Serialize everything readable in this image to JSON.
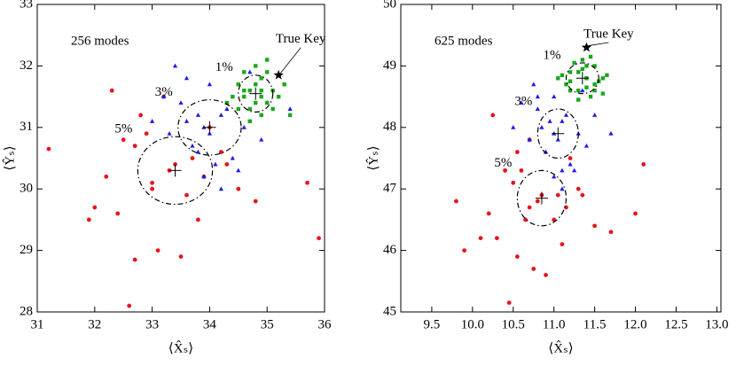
{
  "chart_data": [
    {
      "type": "scatter",
      "annotation": "256 modes",
      "xlabel": "⟨X̂ₛ⟩",
      "ylabel": "⟨Ŷₛ⟩",
      "xlim": [
        31,
        36
      ],
      "ylim": [
        28,
        33
      ],
      "xticks": [
        31,
        32,
        33,
        34,
        35,
        36
      ],
      "yticks": [
        28,
        29,
        30,
        31,
        32,
        33
      ],
      "true_key": {
        "label": "True Key",
        "x": 35.2,
        "y": 31.85
      },
      "series": [
        {
          "name": "5%",
          "color": "#e8141a",
          "marker": "circle",
          "x": [
            32.5,
            33.0,
            33.8,
            34.2,
            32.8,
            33.4,
            31.2,
            33.6,
            32.2,
            34.5,
            33.1,
            32.9,
            33.7,
            32.4,
            35.7,
            34.0,
            32.0,
            33.3,
            33.5,
            32.7,
            34.8,
            33.9,
            32.6,
            33.2,
            35.9,
            31.9,
            34.3,
            32.3,
            33.0,
            32.7
          ],
          "y": [
            30.8,
            30.1,
            29.5,
            30.6,
            31.2,
            30.4,
            30.65,
            29.9,
            30.2,
            30.0,
            29.0,
            30.9,
            30.5,
            29.6,
            30.1,
            31.0,
            29.7,
            30.3,
            28.9,
            30.7,
            29.8,
            30.2,
            28.1,
            31.5,
            29.2,
            29.5,
            30.4,
            31.6,
            30.0,
            28.85
          ],
          "ellipse": {
            "cx": 33.4,
            "cy": 30.3,
            "rx": 0.65,
            "ry": 0.55
          }
        },
        {
          "name": "3%",
          "color": "#1a1aee",
          "marker": "triangle",
          "x": [
            33.5,
            34.2,
            33.8,
            34.6,
            33.3,
            34.0,
            34.4,
            33.6,
            34.9,
            33.9,
            33.2,
            34.3,
            34.7,
            33.7,
            34.1,
            33.4,
            35.0,
            34.5,
            33.0,
            33.9,
            34.2,
            33.6,
            35.4,
            34.0,
            33.8
          ],
          "y": [
            31.4,
            31.2,
            30.6,
            31.0,
            30.9,
            31.7,
            30.5,
            31.1,
            30.8,
            30.2,
            31.5,
            31.3,
            31.9,
            30.7,
            30.4,
            32.0,
            31.4,
            30.3,
            31.1,
            31.0,
            30.0,
            31.8,
            31.3,
            30.9,
            31.2
          ],
          "ellipse": {
            "cx": 34.0,
            "cy": 31.0,
            "rx": 0.55,
            "ry": 0.45
          }
        },
        {
          "name": "1%",
          "color": "#1aa81a",
          "marker": "square",
          "x": [
            34.6,
            34.9,
            35.0,
            34.7,
            34.5,
            35.1,
            34.8,
            34.9,
            34.6,
            35.2,
            34.7,
            34.4,
            35.0,
            34.8,
            34.5,
            35.3,
            34.9,
            34.7,
            35.1,
            34.6,
            34.8,
            35.0,
            34.3,
            34.9,
            35.4
          ],
          "y": [
            31.6,
            31.8,
            31.4,
            31.3,
            31.7,
            31.6,
            32.0,
            31.2,
            31.9,
            31.5,
            31.6,
            31.5,
            31.9,
            31.4,
            31.3,
            31.7,
            31.6,
            31.1,
            31.3,
            31.5,
            31.7,
            32.1,
            31.4,
            31.5,
            31.2
          ],
          "ellipse": {
            "cx": 34.8,
            "cy": 31.55,
            "rx": 0.3,
            "ry": 0.3
          }
        }
      ]
    },
    {
      "type": "scatter",
      "annotation": "625 modes",
      "xlabel": "⟨X̂ₛ⟩",
      "ylabel": "⟨Ŷₛ⟩",
      "xlim": [
        9.12,
        13.05
      ],
      "ylim": [
        45,
        50
      ],
      "xticks": [
        9.5,
        {
          "value": 10,
          "label": "10.0"
        },
        10.5,
        {
          "value": 11,
          "label": "11.0"
        },
        11.5,
        {
          "value": 12,
          "label": "12.0"
        },
        12.5,
        {
          "value": 13,
          "label": "13.0"
        }
      ],
      "yticks": [
        45,
        46,
        47,
        48,
        49,
        50
      ],
      "true_key": {
        "label": "True Key",
        "x": 11.4,
        "y": 49.3
      },
      "series": [
        {
          "name": "5%",
          "color": "#e8141a",
          "marker": "circle",
          "x": [
            10.4,
            10.7,
            11.1,
            11.3,
            10.55,
            10.85,
            9.8,
            11.0,
            10.2,
            11.5,
            10.75,
            10.6,
            11.05,
            10.3,
            12.0,
            11.2,
            10.1,
            10.8,
            10.9,
            10.5,
            11.7,
            11.15,
            10.45,
            10.7,
            12.1,
            9.9,
            11.35,
            10.25,
            10.65,
            10.55
          ],
          "y": [
            47.3,
            46.7,
            46.1,
            47.0,
            47.6,
            46.9,
            46.8,
            46.5,
            46.6,
            46.4,
            45.7,
            47.3,
            46.9,
            46.2,
            46.6,
            47.5,
            46.2,
            46.8,
            45.6,
            47.1,
            46.3,
            46.7,
            45.15,
            47.8,
            47.4,
            46.0,
            46.9,
            48.2,
            46.5,
            45.9
          ],
          "ellipse": {
            "cx": 10.85,
            "cy": 46.85,
            "rx": 0.3,
            "ry": 0.45
          }
        },
        {
          "name": "3%",
          "color": "#1a1aee",
          "marker": "triangle",
          "x": [
            10.8,
            11.1,
            10.9,
            11.3,
            10.7,
            11.0,
            11.2,
            10.85,
            11.4,
            11.0,
            10.6,
            11.15,
            11.35,
            10.9,
            11.1,
            10.75,
            11.5,
            11.25,
            10.5,
            11.0,
            11.1,
            10.8,
            11.7,
            11.05,
            10.95
          ],
          "y": [
            48.3,
            48.1,
            47.6,
            47.9,
            47.8,
            48.5,
            47.4,
            48.0,
            47.7,
            47.2,
            48.4,
            48.2,
            48.6,
            47.6,
            47.3,
            48.7,
            48.2,
            47.3,
            48.0,
            47.9,
            47.0,
            48.5,
            47.9,
            47.8,
            48.1
          ],
          "ellipse": {
            "cx": 11.05,
            "cy": 47.9,
            "rx": 0.25,
            "ry": 0.4
          }
        },
        {
          "name": "1%",
          "color": "#1aa81a",
          "marker": "square",
          "x": [
            11.2,
            11.4,
            11.5,
            11.3,
            11.1,
            11.6,
            11.35,
            11.45,
            11.25,
            11.55,
            11.3,
            11.05,
            11.5,
            11.4,
            11.2,
            11.65,
            11.4,
            11.3,
            11.5,
            11.2,
            11.35,
            11.45,
            11.15,
            11.4,
            11.6
          ],
          "y": [
            48.9,
            49.0,
            48.7,
            48.6,
            48.85,
            48.8,
            49.1,
            48.5,
            49.05,
            48.75,
            48.9,
            48.8,
            49.0,
            48.65,
            48.6,
            48.85,
            48.8,
            48.45,
            48.6,
            48.75,
            48.95,
            49.15,
            48.7,
            48.8,
            48.55
          ],
          "ellipse": {
            "cx": 11.35,
            "cy": 48.8,
            "rx": 0.2,
            "ry": 0.25
          }
        }
      ]
    }
  ]
}
